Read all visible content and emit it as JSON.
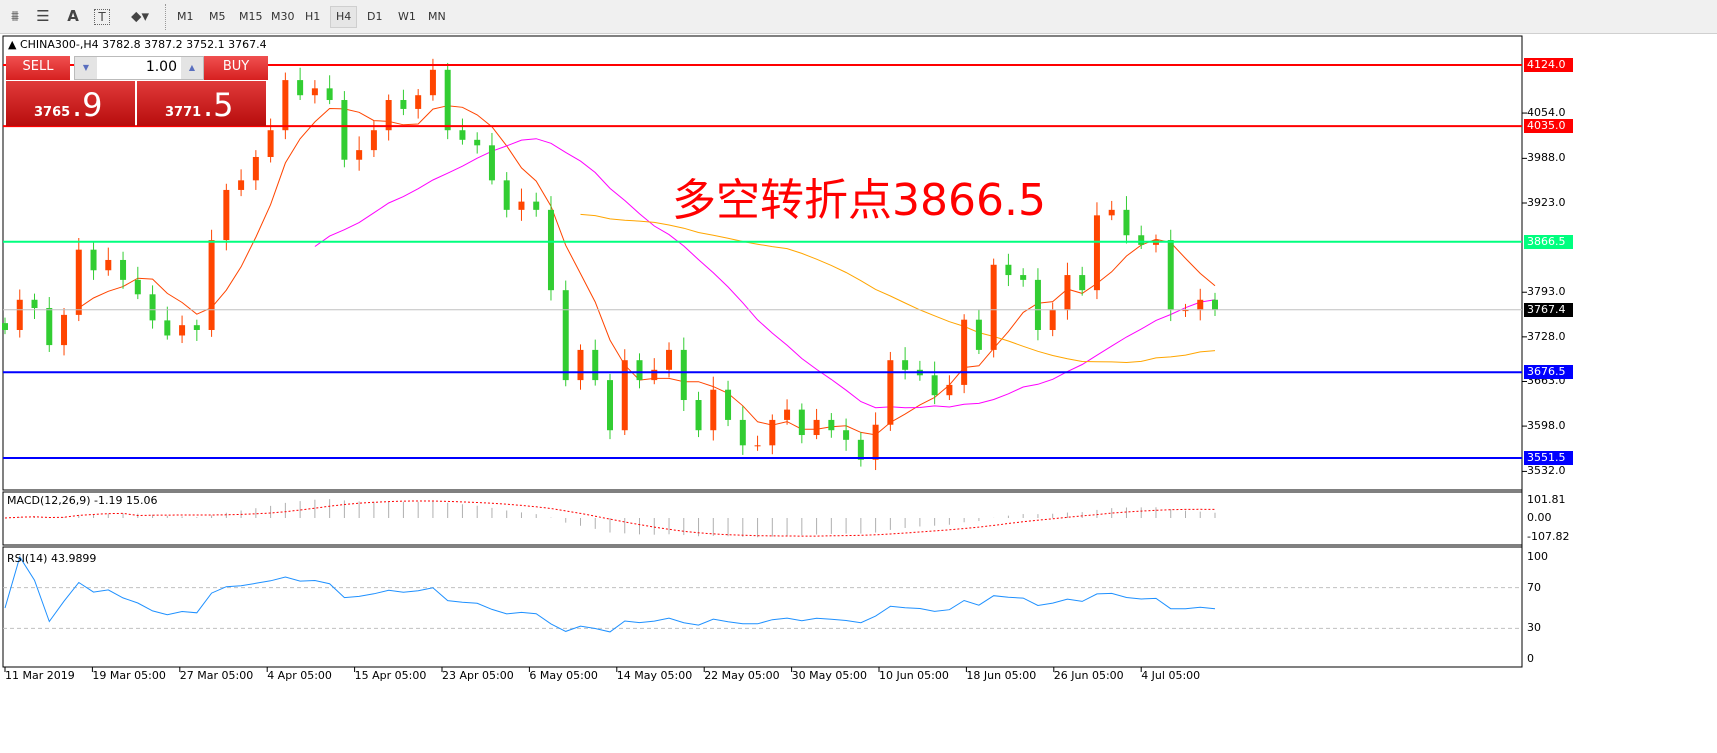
{
  "toolbar": {
    "icons": [
      "elliott-wave-icon",
      "fibonacci-icon",
      "text-icon",
      "text-label-icon",
      "arrows-icon"
    ],
    "text_icon_glyph": "A",
    "timeframes": [
      "M1",
      "M5",
      "M15",
      "M30",
      "H1",
      "H4",
      "D1",
      "W1",
      "MN"
    ],
    "active_timeframe": "H4"
  },
  "chart": {
    "symbol_line": "CHINA300-,H4  3782.8 3787.2 3752.1 3767.4",
    "annotation": "多空转折点3866.5",
    "annotation_color": "#ff0000"
  },
  "trade_panel": {
    "sell_label": "SELL",
    "buy_label": "BUY",
    "lot": "1.00",
    "sell_small": "3765",
    "sell_big": ".9",
    "buy_small": "3771",
    "buy_big": ".5"
  },
  "chart_data": {
    "type": "candlestick",
    "symbol": "CHINA300-",
    "timeframe": "H4",
    "ylim": [
      3520,
      4165
    ],
    "y_ticks": [
      "4054.0",
      "3988.0",
      "3923.0",
      "3793.0",
      "3728.0",
      "3663.0",
      "3598.0",
      "3532.0"
    ],
    "x_tick_labels": [
      "11 Mar 2019",
      "19 Mar 05:00",
      "27 Mar 05:00",
      "4 Apr 05:00",
      "15 Apr 05:00",
      "23 Apr 05:00",
      "6 May 05:00",
      "14 May 05:00",
      "22 May 05:00",
      "30 May 05:00",
      "10 Jun 05:00",
      "18 Jun 05:00",
      "26 Jun 05:00",
      "4 Jul 05:00"
    ],
    "closes": [
      3738,
      3782,
      3770,
      3716,
      3760,
      3855,
      3825,
      3840,
      3811,
      3790,
      3752,
      3730,
      3745,
      3738,
      3869,
      3942,
      3956,
      3990,
      4029,
      4102,
      4080,
      4090,
      4073,
      3986,
      4000,
      4029,
      4073,
      4060,
      4080,
      4117,
      4029,
      4015,
      4007,
      3956,
      3913,
      3925,
      3913,
      3796,
      3665,
      3709,
      3665,
      3592,
      3694,
      3665,
      3680,
      3709,
      3636,
      3592,
      3651,
      3607,
      3570,
      3570,
      3607,
      3622,
      3585,
      3607,
      3592,
      3578,
      3549,
      3600,
      3694,
      3680,
      3672,
      3643,
      3658,
      3753,
      3709,
      3833,
      3818,
      3811,
      3738,
      3767,
      3818,
      3796,
      3905,
      3913,
      3876,
      3862,
      3869,
      3767,
      3767,
      3782,
      3767.4
    ],
    "bull_color": "#ff4500",
    "bear_color": "#32cd32",
    "levels": [
      {
        "value": "4124.0",
        "color": "#ff0000"
      },
      {
        "value": "4035.0",
        "color": "#ff0000"
      },
      {
        "value": "3866.5",
        "color": "#00ff7f"
      },
      {
        "value": "3676.5",
        "color": "#0000ff"
      },
      {
        "value": "3551.5",
        "color": "#0000ff"
      }
    ],
    "current_price": "3767.4",
    "ma_colors": [
      "#ff4500",
      "#ff00ff",
      "#ffa500"
    ],
    "macd": {
      "label": "MACD(12,26,9) -1.19 15.06",
      "ticks": [
        "101.81",
        "0.00",
        "-107.82"
      ]
    },
    "rsi": {
      "label": "RSI(14) 43.9899",
      "ticks": [
        "100",
        "70",
        "30",
        "0"
      ],
      "levels": [
        70,
        30
      ],
      "color": "#1e90ff"
    }
  }
}
